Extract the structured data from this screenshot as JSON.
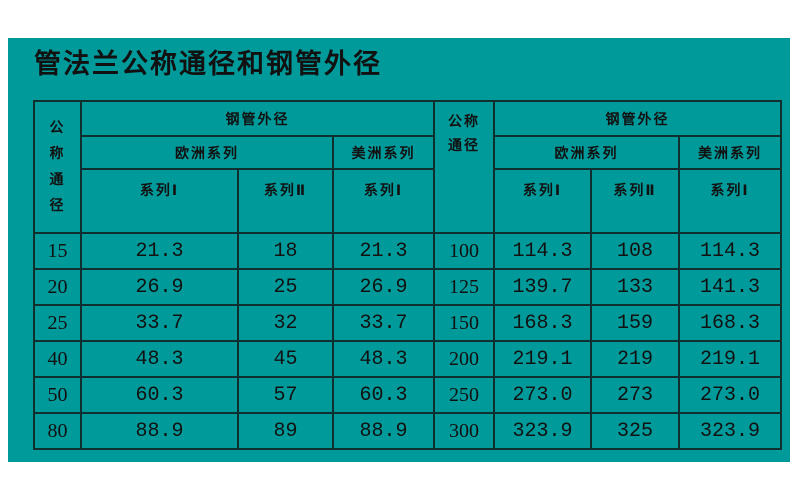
{
  "title": "管法兰公称通径和钢管外径",
  "colors": {
    "background": "#009a9a",
    "border": "#103030"
  },
  "header": {
    "nominal_left": "公称通径",
    "nominal_right": "公称通径",
    "steel_od": "钢管外径",
    "europe": "欧洲系列",
    "america": "美洲系列",
    "series1": "系列Ⅰ",
    "series2": "系列Ⅱ"
  },
  "rows": [
    [
      "15",
      "21.3",
      "18",
      "21.3",
      "100",
      "114.3",
      "108",
      "114.3"
    ],
    [
      "20",
      "26.9",
      "25",
      "26.9",
      "125",
      "139.7",
      "133",
      "141.3"
    ],
    [
      "25",
      "33.7",
      "32",
      "33.7",
      "150",
      "168.3",
      "159",
      "168.3"
    ],
    [
      "40",
      "48.3",
      "45",
      "48.3",
      "200",
      "219.1",
      "219",
      "219.1"
    ],
    [
      "50",
      "60.3",
      "57",
      "60.3",
      "250",
      "273.0",
      "273",
      "273.0"
    ],
    [
      "80",
      "88.9",
      "89",
      "88.9",
      "300",
      "323.9",
      "325",
      "323.9"
    ]
  ]
}
